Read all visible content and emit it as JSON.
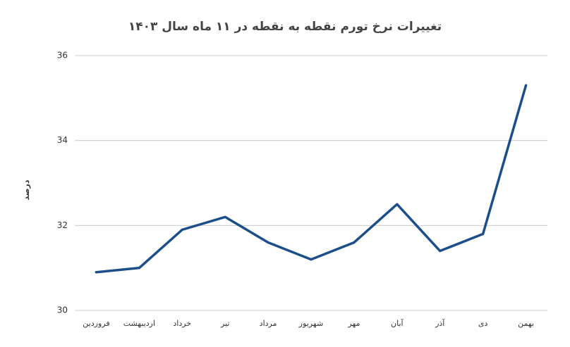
{
  "chart_data": {
    "type": "line",
    "title": "تغییرات نرخ تورم نقطه به نقطه در ۱۱ ماه سال ۱۴۰۳",
    "y_label": "درصد",
    "categories": [
      "فروردین",
      "اردیبهشت",
      "خرداد",
      "تیر",
      "مرداد",
      "شهریور",
      "مهر",
      "آبان",
      "آذر",
      "دی",
      "بهمن"
    ],
    "series": [
      {
        "color": "#1c4f8a",
        "values": [
          30.9,
          31.0,
          31.9,
          32.2,
          31.6,
          31.2,
          31.6,
          32.5,
          31.4,
          31.8,
          35.3
        ]
      }
    ],
    "ylim": [
      30,
      36
    ],
    "yticks": [
      30,
      32,
      34,
      36
    ],
    "grid": true
  }
}
